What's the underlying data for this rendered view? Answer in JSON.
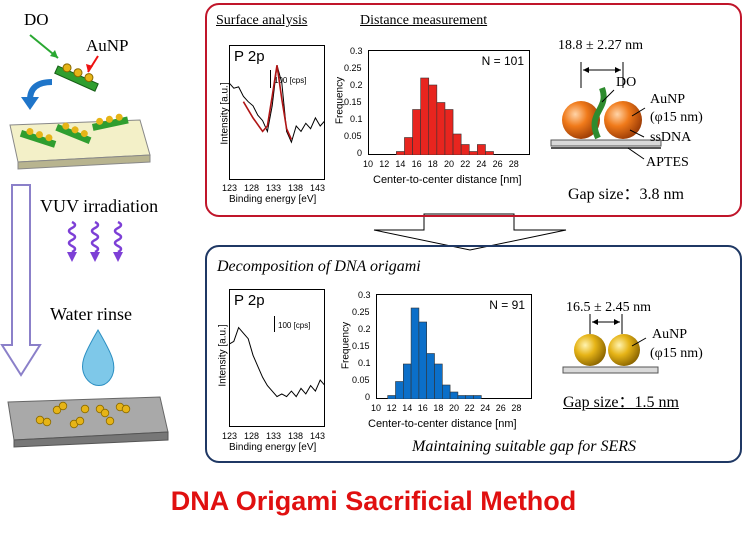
{
  "process": {
    "do_label": "DO",
    "aunp_label": "AuNP",
    "vuv_label": "VUV irradiation",
    "rinse_label": "Water rinse"
  },
  "top_panel": {
    "surface_title": "Surface analysis",
    "distance_title": "Distance measurement",
    "xps": {
      "peak_label": "P 2p",
      "scale_label": "100 [cps]",
      "ylabel": "Intensity [a.u.]",
      "xlabel": "Binding energy [eV]",
      "ticks": [
        "123",
        "128",
        "133",
        "138",
        "143"
      ]
    },
    "histogram": {
      "n_label": "N = 101",
      "ylabel": "Frequency",
      "xlabel": "Center-to-center distance [nm]",
      "xticks": [
        "10",
        "12",
        "14",
        "16",
        "18",
        "20",
        "22",
        "24",
        "26",
        "28"
      ],
      "yticks": [
        "0",
        "0.05",
        "0.1",
        "0.15",
        "0.2",
        "0.25",
        "0.3"
      ]
    },
    "schematic": {
      "distance": "18.8 ± 2.27 nm",
      "do": "DO",
      "aunp": "AuNP",
      "size": "(φ15 nm)",
      "ssdna": "ssDNA",
      "aptes": "APTES",
      "gap": "Gap size：3.8 nm"
    }
  },
  "bottom_panel": {
    "title": "Decomposition of DNA origami",
    "xps": {
      "peak_label": "P 2p",
      "scale_label": "100 [cps]",
      "ylabel": "Intensity [a.u.]",
      "xlabel": "Binding energy [eV]",
      "ticks": [
        "123",
        "128",
        "133",
        "138",
        "143"
      ]
    },
    "histogram": {
      "n_label": "N = 91",
      "ylabel": "Frequency",
      "xlabel": "Center-to-center distance [nm]",
      "xticks": [
        "10",
        "12",
        "14",
        "16",
        "18",
        "20",
        "22",
        "24",
        "26",
        "28"
      ],
      "yticks": [
        "0",
        "0.05",
        "0.1",
        "0.15",
        "0.2",
        "0.25",
        "0.3"
      ]
    },
    "schematic": {
      "distance": "16.5 ± 2.45 nm",
      "aunp": "AuNP",
      "size": "(φ15 nm)",
      "gap": "Gap size：1.5 nm"
    },
    "caption": "Maintaining suitable gap for SERS"
  },
  "main_title": "DNA Origami Sacrificial Method",
  "colors": {
    "red": "#c0152a",
    "navy": "#1f3864",
    "hist_red": "#e8251f",
    "hist_blue": "#0b6fc9",
    "gold": "#e6b417",
    "orange": "#e0600c"
  },
  "chart_data": [
    {
      "type": "bar",
      "xlabel": "Center-to-center distance [nm]",
      "ylabel": "Frequency",
      "xlim": [
        10,
        30
      ],
      "ylim": [
        0,
        0.3
      ],
      "x": [
        14,
        15,
        16,
        17,
        18,
        19,
        20,
        21,
        22,
        23,
        24,
        25
      ],
      "values": [
        0.01,
        0.05,
        0.13,
        0.22,
        0.2,
        0.15,
        0.13,
        0.06,
        0.03,
        0.01,
        0.03,
        0.01
      ]
    },
    {
      "type": "bar",
      "xlabel": "Center-to-center distance [nm]",
      "ylabel": "Frequency",
      "xlim": [
        10,
        30
      ],
      "ylim": [
        0,
        0.3
      ],
      "x": [
        12,
        13,
        14,
        15,
        16,
        17,
        18,
        19,
        20,
        21,
        22,
        23
      ],
      "values": [
        0.01,
        0.05,
        0.1,
        0.26,
        0.22,
        0.13,
        0.1,
        0.04,
        0.02,
        0.01,
        0.01,
        0.01
      ]
    },
    {
      "type": "line",
      "xlabel": "Binding energy [eV]",
      "ylabel": "Intensity [a.u.]",
      "xlim": [
        123,
        143
      ],
      "series": [
        {
          "x": [
            123,
            124,
            125,
            126,
            127,
            128,
            129,
            130,
            131,
            132,
            133,
            134,
            135,
            136,
            137,
            138,
            139,
            140,
            141,
            142,
            143
          ],
          "values": [
            0.72,
            0.68,
            0.69,
            0.62,
            0.58,
            0.55,
            0.48,
            0.44,
            0.36,
            0.55,
            0.85,
            0.72,
            0.36,
            0.28,
            0.4,
            0.36,
            0.42,
            0.38,
            0.46,
            0.4,
            0.44
          ]
        },
        {
          "x": [
            126,
            128,
            130,
            131,
            132,
            133,
            134,
            135,
            136
          ],
          "values": [
            0.58,
            0.46,
            0.36,
            0.4,
            0.62,
            0.85,
            0.6,
            0.38,
            0.3
          ]
        }
      ]
    },
    {
      "type": "line",
      "xlabel": "Binding energy [eV]",
      "ylabel": "Intensity [a.u.]",
      "xlim": [
        123,
        143
      ],
      "series": [
        {
          "x": [
            123,
            124,
            125,
            126,
            127,
            128,
            129,
            130,
            131,
            132,
            133,
            134,
            135,
            136,
            137,
            138,
            139,
            140,
            141,
            142,
            143
          ],
          "values": [
            0.6,
            0.62,
            0.72,
            0.68,
            0.64,
            0.52,
            0.44,
            0.36,
            0.3,
            0.26,
            0.22,
            0.24,
            0.22,
            0.26,
            0.22,
            0.28,
            0.24,
            0.3,
            0.26,
            0.34,
            0.3
          ]
        }
      ]
    }
  ]
}
